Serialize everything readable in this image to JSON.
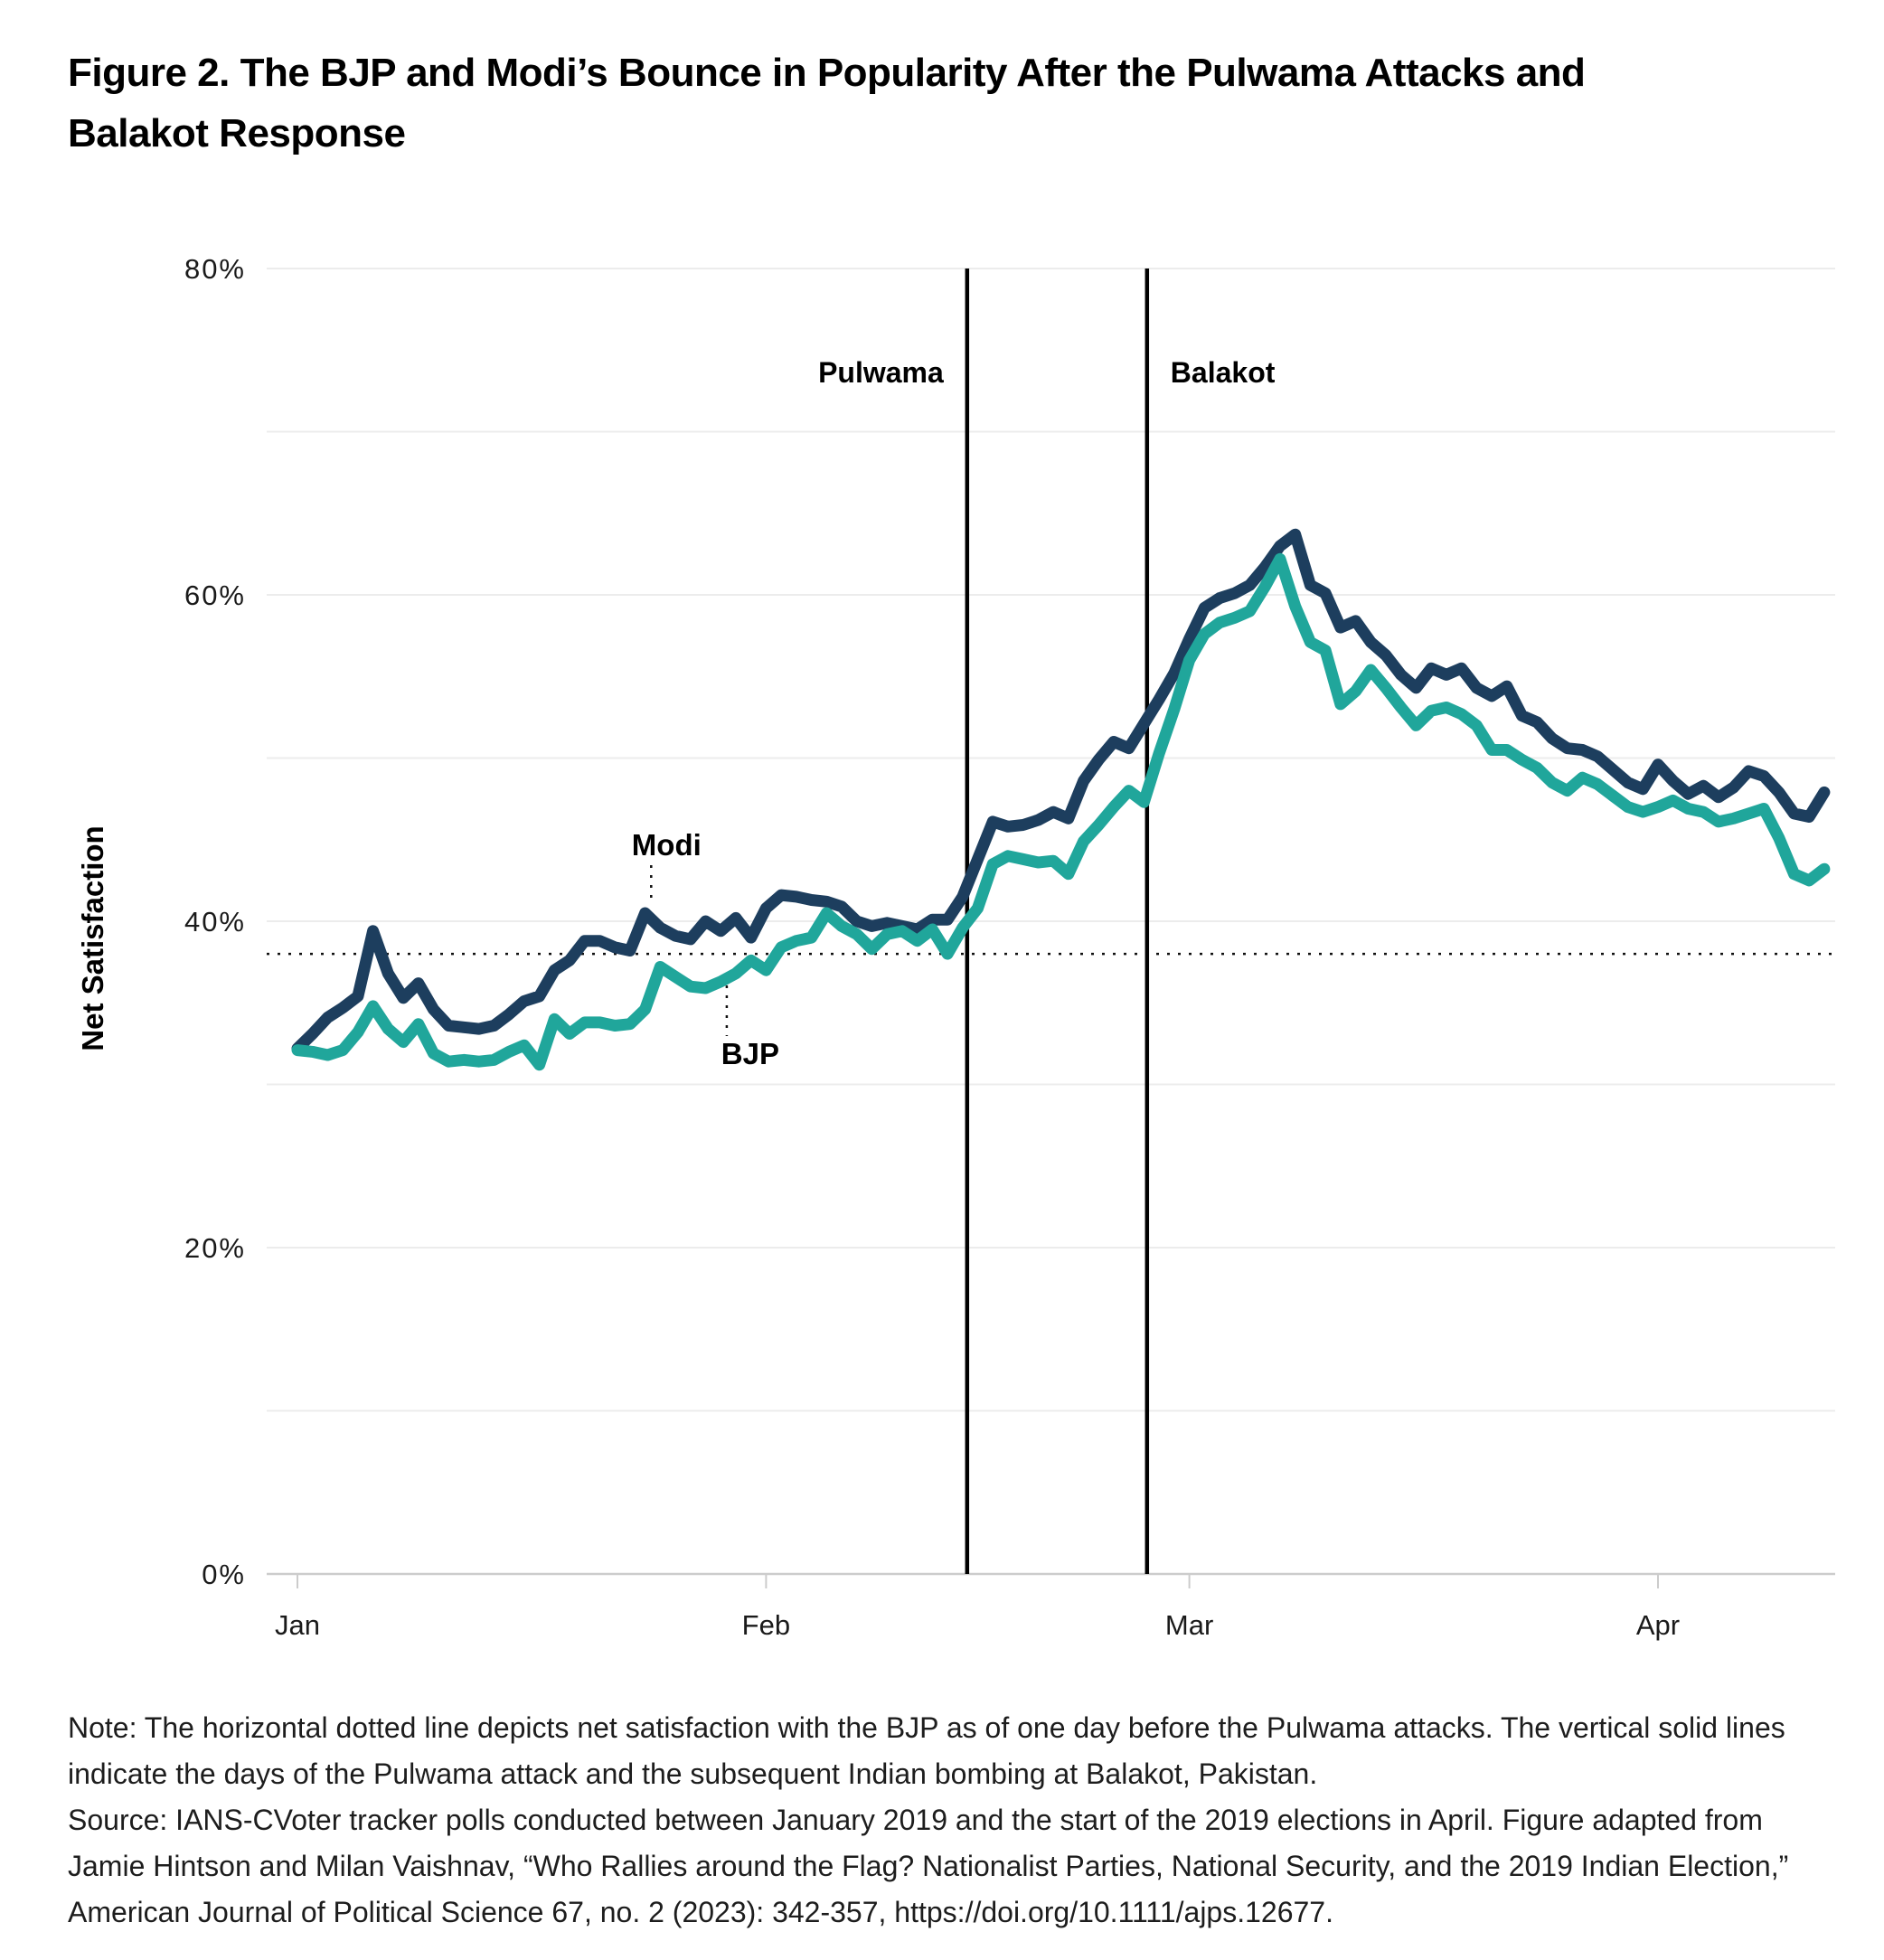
{
  "figure": {
    "title_lines": [
      "Figure 2. The BJP and Modi’s Bounce in Popularity After the Pulwama Attacks and",
      "Balakot Response"
    ],
    "y_axis_title": "Net Satisfaction",
    "note": "Note: The horizontal dotted line depicts net satisfaction with the BJP as of one day before the Pulwama attacks. The vertical solid lines indicate the days of the Pulwama attack and the subsequent Indian bombing at Balakot, Pakistan.",
    "source": "Source: IANS-CVoter tracker polls conducted between January 2019 and the start of the 2019 elections in April. Figure adapted from Jamie Hintson and Milan Vaishnav, “Who Rallies around the Flag? Nationalist Parties, National Security, and the 2019 Indian Election,” American Journal of Political Science 67, no. 2 (2023): 342-357, https://doi.org/10.1111/ajps.12677."
  },
  "chart_data": {
    "type": "line",
    "title": "Figure 2. The BJP and Modi’s Bounce in Popularity After the Pulwama Attacks and Balakot Response",
    "ylabel": "Net Satisfaction",
    "ylim": [
      0,
      80
    ],
    "grid": "horizontal every 10%, light gray",
    "ytick_values": [
      0,
      20,
      40,
      60,
      80
    ],
    "ytick_labels": [
      "0%",
      "20%",
      "40%",
      "60%",
      "80%"
    ],
    "xtick_labels": [
      "Jan",
      "Feb",
      "Mar",
      "Apr"
    ],
    "xtick_days": [
      0,
      31,
      59,
      90
    ],
    "x_unit": "daily tracker polls, 2019",
    "x_range": [
      "Jan 1 2019",
      "Apr 12 2019"
    ],
    "series": [
      {
        "name": "Modi",
        "color": "#1d3e5e",
        "values": [
          32.2,
          33.1,
          34.1,
          34.7,
          35.4,
          39.4,
          36.8,
          35.3,
          36.2,
          34.6,
          33.6,
          33.5,
          33.4,
          33.6,
          34.3,
          35.1,
          35.4,
          37.0,
          37.6,
          38.8,
          38.8,
          38.4,
          38.2,
          40.5,
          39.6,
          39.1,
          38.9,
          40.0,
          39.4,
          40.2,
          39.0,
          40.8,
          41.6,
          41.5,
          41.3,
          41.2,
          40.9,
          40.0,
          39.7,
          39.9,
          39.7,
          39.5,
          40.1,
          40.1,
          41.5,
          43.8,
          46.1,
          45.8,
          45.9,
          46.2,
          46.7,
          46.3,
          48.6,
          49.9,
          51.0,
          50.6,
          52.1,
          53.6,
          55.2,
          57.3,
          59.2,
          59.8,
          60.1,
          60.6,
          61.7,
          63.0,
          63.7,
          60.6,
          60.1,
          58.0,
          58.4,
          57.1,
          56.3,
          55.1,
          54.3,
          55.5,
          55.1,
          55.5,
          54.3,
          53.8,
          54.4,
          52.6,
          52.2,
          51.2,
          50.6,
          50.5,
          50.1,
          49.3,
          48.5,
          48.1,
          49.6,
          48.6,
          47.8,
          48.3,
          47.6,
          48.2,
          49.2,
          48.9,
          47.9,
          46.6,
          46.4,
          47.9
        ]
      },
      {
        "name": "BJP",
        "color": "#20a69b",
        "values": [
          32.1,
          32.0,
          31.8,
          32.1,
          33.2,
          34.8,
          33.4,
          32.6,
          33.7,
          31.9,
          31.4,
          31.5,
          31.4,
          31.5,
          32.0,
          32.4,
          31.2,
          34.0,
          33.1,
          33.8,
          33.8,
          33.6,
          33.7,
          34.6,
          37.2,
          36.6,
          36.0,
          35.9,
          36.3,
          36.8,
          37.6,
          37.0,
          38.4,
          38.8,
          39.0,
          40.5,
          39.7,
          39.2,
          38.3,
          39.2,
          39.4,
          38.8,
          39.5,
          38.0,
          39.6,
          40.8,
          43.5,
          44.0,
          43.8,
          43.6,
          43.7,
          42.9,
          44.9,
          45.9,
          47.0,
          48.0,
          47.3,
          50.3,
          53.0,
          56.0,
          57.6,
          58.3,
          58.6,
          59.0,
          60.5,
          62.2,
          59.3,
          57.1,
          56.6,
          53.3,
          54.1,
          55.4,
          54.3,
          53.1,
          52.0,
          52.9,
          53.1,
          52.7,
          52.0,
          50.5,
          50.5,
          49.9,
          49.4,
          48.5,
          48.0,
          48.8,
          48.4,
          47.7,
          47.0,
          46.7,
          47.0,
          47.4,
          46.9,
          46.7,
          46.1,
          46.3,
          46.6,
          46.9,
          45.1,
          42.9,
          42.5,
          43.2
        ]
      }
    ],
    "annotations": {
      "events": [
        {
          "label": "Pulwama",
          "day": 44.3,
          "side": "left"
        },
        {
          "label": "Balakot",
          "day": 56.2,
          "side": "right"
        }
      ],
      "series_labels": [
        {
          "label": "Modi",
          "day": 23.4,
          "placement": "above"
        },
        {
          "label": "BJP",
          "day": 28.4,
          "placement": "below"
        }
      ],
      "dotted_line_value": 38.0
    }
  },
  "colors": {
    "modi_line": "#1d3e5e",
    "bjp_line": "#20a69b",
    "gridline": "#ececec",
    "axis": "#cccccc",
    "event_line": "#000000",
    "text": "#1a1a1a"
  }
}
